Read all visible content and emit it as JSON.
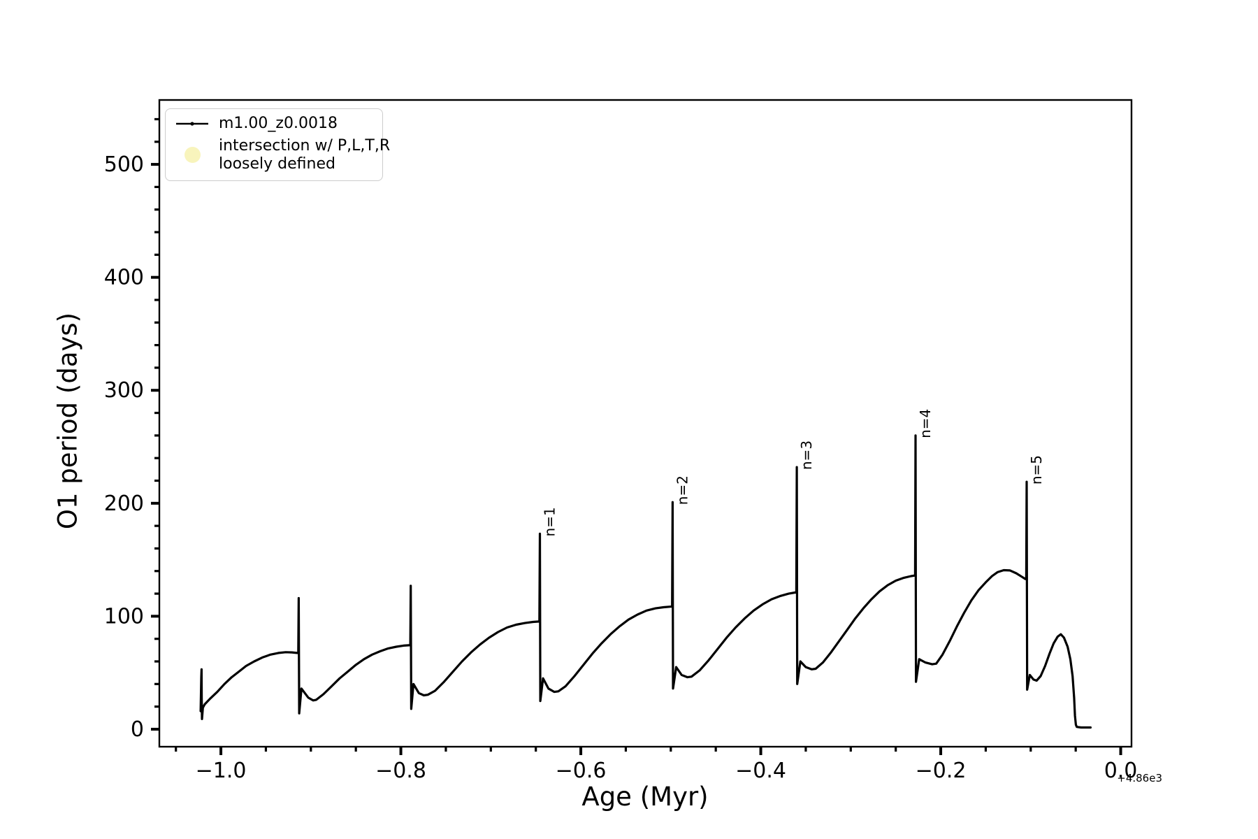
{
  "chart_data": {
    "type": "line",
    "title": "",
    "xlabel": "Age (Myr)",
    "ylabel": "O1 period (days)",
    "x_offset_text": "+4.86e3",
    "grid": false,
    "legend_position": "upper left",
    "xlim": [
      -1.0684,
      0.012
    ],
    "ylim": [
      -15.5,
      557
    ],
    "x_major_ticks": [
      -1.0,
      -0.8,
      -0.6,
      -0.4,
      -0.2,
      0.0
    ],
    "x_tick_labels": [
      "−1.0",
      "−0.8",
      "−0.6",
      "−0.4",
      "−0.2",
      "0.0"
    ],
    "x_minor_ticks": [
      -1.05,
      -0.95,
      -0.9,
      -0.85,
      -0.75,
      -0.7,
      -0.65,
      -0.55,
      -0.5,
      -0.45,
      -0.35,
      -0.3,
      -0.25,
      -0.15,
      -0.1,
      -0.05
    ],
    "y_major_ticks": [
      0,
      100,
      200,
      300,
      400,
      500
    ],
    "y_tick_labels": [
      "0",
      "100",
      "200",
      "300",
      "400",
      "500"
    ],
    "y_minor_ticks": [
      20,
      40,
      60,
      80,
      120,
      140,
      160,
      180,
      220,
      240,
      260,
      280,
      320,
      340,
      360,
      380,
      420,
      440,
      460,
      480,
      520,
      540
    ],
    "line_color": "#000000",
    "intersection_marker_color": "#f8f4bc",
    "legend": {
      "entries": [
        {
          "label": "m1.00_z0.0018",
          "marker": "line-dot",
          "color": "#000000"
        },
        {
          "label_line1": "intersection w/ P,L,T,R",
          "label_line2": "loosely defined",
          "marker": "circle",
          "color": "#f8f4bc"
        }
      ]
    },
    "annotations": [
      {
        "label": "n=1",
        "x": -0.6455,
        "y": 173
      },
      {
        "label": "n=2",
        "x": -0.498,
        "y": 201
      },
      {
        "label": "n=3",
        "x": -0.36,
        "y": 232
      },
      {
        "label": "n=4",
        "x": -0.228,
        "y": 260
      },
      {
        "label": "n=5",
        "x": -0.1045,
        "y": 219
      }
    ],
    "series": [
      {
        "name": "m1.00_z0.0018",
        "color": "#000000",
        "points": [
          [
            -1.0225,
            16
          ],
          [
            -1.0218,
            46
          ],
          [
            -1.0215,
            53
          ],
          [
            -1.0213,
            28
          ],
          [
            -1.021,
            9
          ],
          [
            -1.02,
            19
          ],
          [
            -1.018,
            22
          ],
          [
            -1.012,
            27
          ],
          [
            -1.004,
            33
          ],
          [
            -0.996,
            40
          ],
          [
            -0.988,
            46
          ],
          [
            -0.98,
            51
          ],
          [
            -0.972,
            56
          ],
          [
            -0.963,
            60
          ],
          [
            -0.954,
            63.5
          ],
          [
            -0.945,
            66
          ],
          [
            -0.936,
            67.5
          ],
          [
            -0.928,
            68.2
          ],
          [
            -0.921,
            68
          ],
          [
            -0.9155,
            67.5
          ],
          [
            -0.914,
            67.5
          ],
          [
            -0.9135,
            116
          ],
          [
            -0.913,
            14
          ],
          [
            -0.9105,
            36
          ],
          [
            -0.903,
            28
          ],
          [
            -0.8975,
            25.5
          ],
          [
            -0.894,
            26
          ],
          [
            -0.886,
            31
          ],
          [
            -0.877,
            38
          ],
          [
            -0.868,
            45
          ],
          [
            -0.859,
            51
          ],
          [
            -0.85,
            57
          ],
          [
            -0.841,
            62
          ],
          [
            -0.832,
            66
          ],
          [
            -0.823,
            69
          ],
          [
            -0.814,
            71.5
          ],
          [
            -0.805,
            73
          ],
          [
            -0.797,
            74
          ],
          [
            -0.791,
            74.3
          ],
          [
            -0.7895,
            74.3
          ],
          [
            -0.789,
            127
          ],
          [
            -0.7885,
            18
          ],
          [
            -0.786,
            40
          ],
          [
            -0.78,
            32
          ],
          [
            -0.7745,
            30
          ],
          [
            -0.77,
            30.5
          ],
          [
            -0.762,
            34
          ],
          [
            -0.752,
            42
          ],
          [
            -0.742,
            51
          ],
          [
            -0.732,
            60
          ],
          [
            -0.722,
            68
          ],
          [
            -0.712,
            75
          ],
          [
            -0.702,
            81
          ],
          [
            -0.692,
            86
          ],
          [
            -0.682,
            90
          ],
          [
            -0.672,
            92.5
          ],
          [
            -0.662,
            94
          ],
          [
            -0.653,
            95
          ],
          [
            -0.6475,
            95.3
          ],
          [
            -0.646,
            95.3
          ],
          [
            -0.6455,
            173
          ],
          [
            -0.645,
            25
          ],
          [
            -0.642,
            45
          ],
          [
            -0.636,
            36
          ],
          [
            -0.6295,
            33
          ],
          [
            -0.625,
            33.5
          ],
          [
            -0.617,
            38
          ],
          [
            -0.607,
            47
          ],
          [
            -0.597,
            57
          ],
          [
            -0.587,
            67
          ],
          [
            -0.577,
            76
          ],
          [
            -0.567,
            84
          ],
          [
            -0.557,
            91
          ],
          [
            -0.547,
            97
          ],
          [
            -0.537,
            101.5
          ],
          [
            -0.527,
            105
          ],
          [
            -0.517,
            107
          ],
          [
            -0.508,
            108
          ],
          [
            -0.5005,
            108.5
          ],
          [
            -0.4985,
            108.5
          ],
          [
            -0.498,
            201
          ],
          [
            -0.4975,
            36
          ],
          [
            -0.494,
            55
          ],
          [
            -0.488,
            48
          ],
          [
            -0.4815,
            46
          ],
          [
            -0.477,
            46.5
          ],
          [
            -0.468,
            52
          ],
          [
            -0.458,
            61
          ],
          [
            -0.448,
            71
          ],
          [
            -0.438,
            81
          ],
          [
            -0.428,
            90
          ],
          [
            -0.418,
            98
          ],
          [
            -0.408,
            105
          ],
          [
            -0.398,
            110.5
          ],
          [
            -0.388,
            115
          ],
          [
            -0.378,
            118
          ],
          [
            -0.369,
            120
          ],
          [
            -0.362,
            121
          ],
          [
            -0.3605,
            121
          ],
          [
            -0.36,
            232
          ],
          [
            -0.3595,
            40
          ],
          [
            -0.356,
            60
          ],
          [
            -0.35,
            55
          ],
          [
            -0.3435,
            53
          ],
          [
            -0.339,
            53.5
          ],
          [
            -0.331,
            59
          ],
          [
            -0.322,
            68
          ],
          [
            -0.313,
            78
          ],
          [
            -0.304,
            88
          ],
          [
            -0.295,
            98
          ],
          [
            -0.286,
            107
          ],
          [
            -0.277,
            115
          ],
          [
            -0.268,
            122
          ],
          [
            -0.259,
            127.5
          ],
          [
            -0.25,
            131.5
          ],
          [
            -0.241,
            134
          ],
          [
            -0.233,
            135.5
          ],
          [
            -0.229,
            136
          ],
          [
            -0.2285,
            136
          ],
          [
            -0.228,
            260
          ],
          [
            -0.2275,
            42
          ],
          [
            -0.224,
            62
          ],
          [
            -0.217,
            59
          ],
          [
            -0.2095,
            57.5
          ],
          [
            -0.205,
            58
          ],
          [
            -0.198,
            66
          ],
          [
            -0.19,
            78
          ],
          [
            -0.182,
            91
          ],
          [
            -0.174,
            103
          ],
          [
            -0.166,
            114
          ],
          [
            -0.158,
            123
          ],
          [
            -0.15,
            130
          ],
          [
            -0.143,
            135.5
          ],
          [
            -0.137,
            139
          ],
          [
            -0.13,
            140.8
          ],
          [
            -0.123,
            140.5
          ],
          [
            -0.116,
            138
          ],
          [
            -0.11,
            135
          ],
          [
            -0.106,
            133
          ],
          [
            -0.105,
            133
          ],
          [
            -0.1045,
            219
          ],
          [
            -0.104,
            35
          ],
          [
            -0.101,
            48
          ],
          [
            -0.097,
            44
          ],
          [
            -0.0935,
            43
          ],
          [
            -0.089,
            47
          ],
          [
            -0.084,
            56
          ],
          [
            -0.079,
            67
          ],
          [
            -0.0745,
            76
          ],
          [
            -0.07,
            82
          ],
          [
            -0.0665,
            84
          ],
          [
            -0.063,
            81
          ],
          [
            -0.059,
            73
          ],
          [
            -0.056,
            62
          ],
          [
            -0.0535,
            47
          ],
          [
            -0.0518,
            28
          ],
          [
            -0.0508,
            12
          ],
          [
            -0.0498,
            4
          ],
          [
            -0.0488,
            2
          ],
          [
            -0.044,
            1.5
          ],
          [
            -0.039,
            1.5
          ],
          [
            -0.0335,
            1.5
          ]
        ]
      }
    ]
  }
}
